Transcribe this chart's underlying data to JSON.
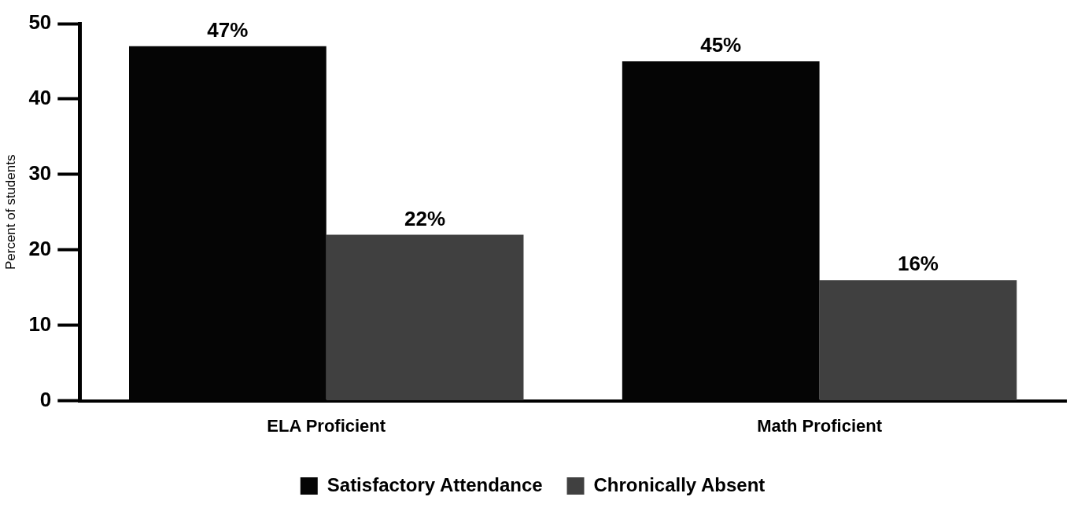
{
  "chart_data": {
    "type": "bar",
    "ylabel": "Percent of students",
    "categories": [
      "ELA Proficient",
      "Math Proficient"
    ],
    "series": [
      {
        "name": "Satisfactory Attendance",
        "color": "#050505",
        "values": [
          47,
          45
        ],
        "value_labels": [
          "47%",
          "45%"
        ]
      },
      {
        "name": "Chronically Absent",
        "color": "#404040",
        "values": [
          22,
          16
        ],
        "value_labels": [
          "22%",
          "16%"
        ]
      }
    ],
    "ylim": [
      0,
      50
    ],
    "yticks": [
      0,
      10,
      20,
      30,
      40,
      50
    ],
    "grid": false,
    "legend": "bottom"
  }
}
